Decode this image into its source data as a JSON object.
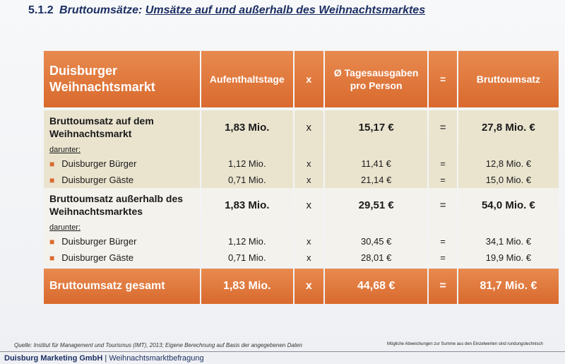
{
  "heading": {
    "number": "5.1.2",
    "title_italic": "Bruttoumsätze:",
    "title_underlined": "Umsätze auf und außerhalb des Weihnachtsmarktes"
  },
  "table": {
    "header": {
      "brand": "Duisburger Weihnachtsmarkt",
      "col_days": "Aufenthaltstage",
      "col_x": "x",
      "col_spend": "Ø Tagesausgaben pro Person",
      "col_eq": "=",
      "col_revenue": "Bruttoumsatz"
    },
    "section_on": {
      "label": "Bruttoumsatz auf dem Weihnachtsmarkt",
      "days": "1,83 Mio.",
      "x": "x",
      "spend": "15,17 €",
      "eq": "=",
      "revenue": "27,8 Mio. €",
      "darunter": "darunter:",
      "rows": [
        {
          "label": "Duisburger Bürger",
          "days": "1,12 Mio.",
          "x": "x",
          "spend": "11,41 €",
          "eq": "=",
          "revenue": "12,8 Mio. €"
        },
        {
          "label": "Duisburger Gäste",
          "days": "0,71 Mio.",
          "x": "x",
          "spend": "21,14 €",
          "eq": "=",
          "revenue": "15,0 Mio. €"
        }
      ]
    },
    "section_off": {
      "label": "Bruttoumsatz außerhalb des Weihnachtsmarktes",
      "days": "1,83 Mio.",
      "x": "x",
      "spend": "29,51 €",
      "eq": "=",
      "revenue": "54,0 Mio. €",
      "darunter": "darunter:",
      "rows": [
        {
          "label": "Duisburger Bürger",
          "days": "1,12 Mio.",
          "x": "x",
          "spend": "30,45 €",
          "eq": "=",
          "revenue": "34,1 Mio. €"
        },
        {
          "label": "Duisburger Gäste",
          "days": "0,71 Mio.",
          "x": "x",
          "spend": "28,01 €",
          "eq": "=",
          "revenue": "19,9 Mio. €"
        }
      ]
    },
    "total": {
      "label": "Bruttoumsatz gesamt",
      "days": "1,83 Mio.",
      "x": "x",
      "spend": "44,68 €",
      "eq": "=",
      "revenue": "81,7 Mio. €"
    }
  },
  "source": "Quelle: Institut für Management und Tourismus (IMT), 2013; Eigene Berechnung auf Basis der angegebenen Daten",
  "note": "Mögliche Abweichungen zur Summe aus den Einzelwerten sind rundungstechnisch",
  "footer": {
    "company": "Duisburg Marketing GmbH",
    "separator": "|",
    "subject": "Weihnachtsmarktbefragung"
  },
  "colors": {
    "accent_orange": "#d96a2e",
    "section_beige": "#eae4cf",
    "heading_blue": "#1c2f63"
  }
}
